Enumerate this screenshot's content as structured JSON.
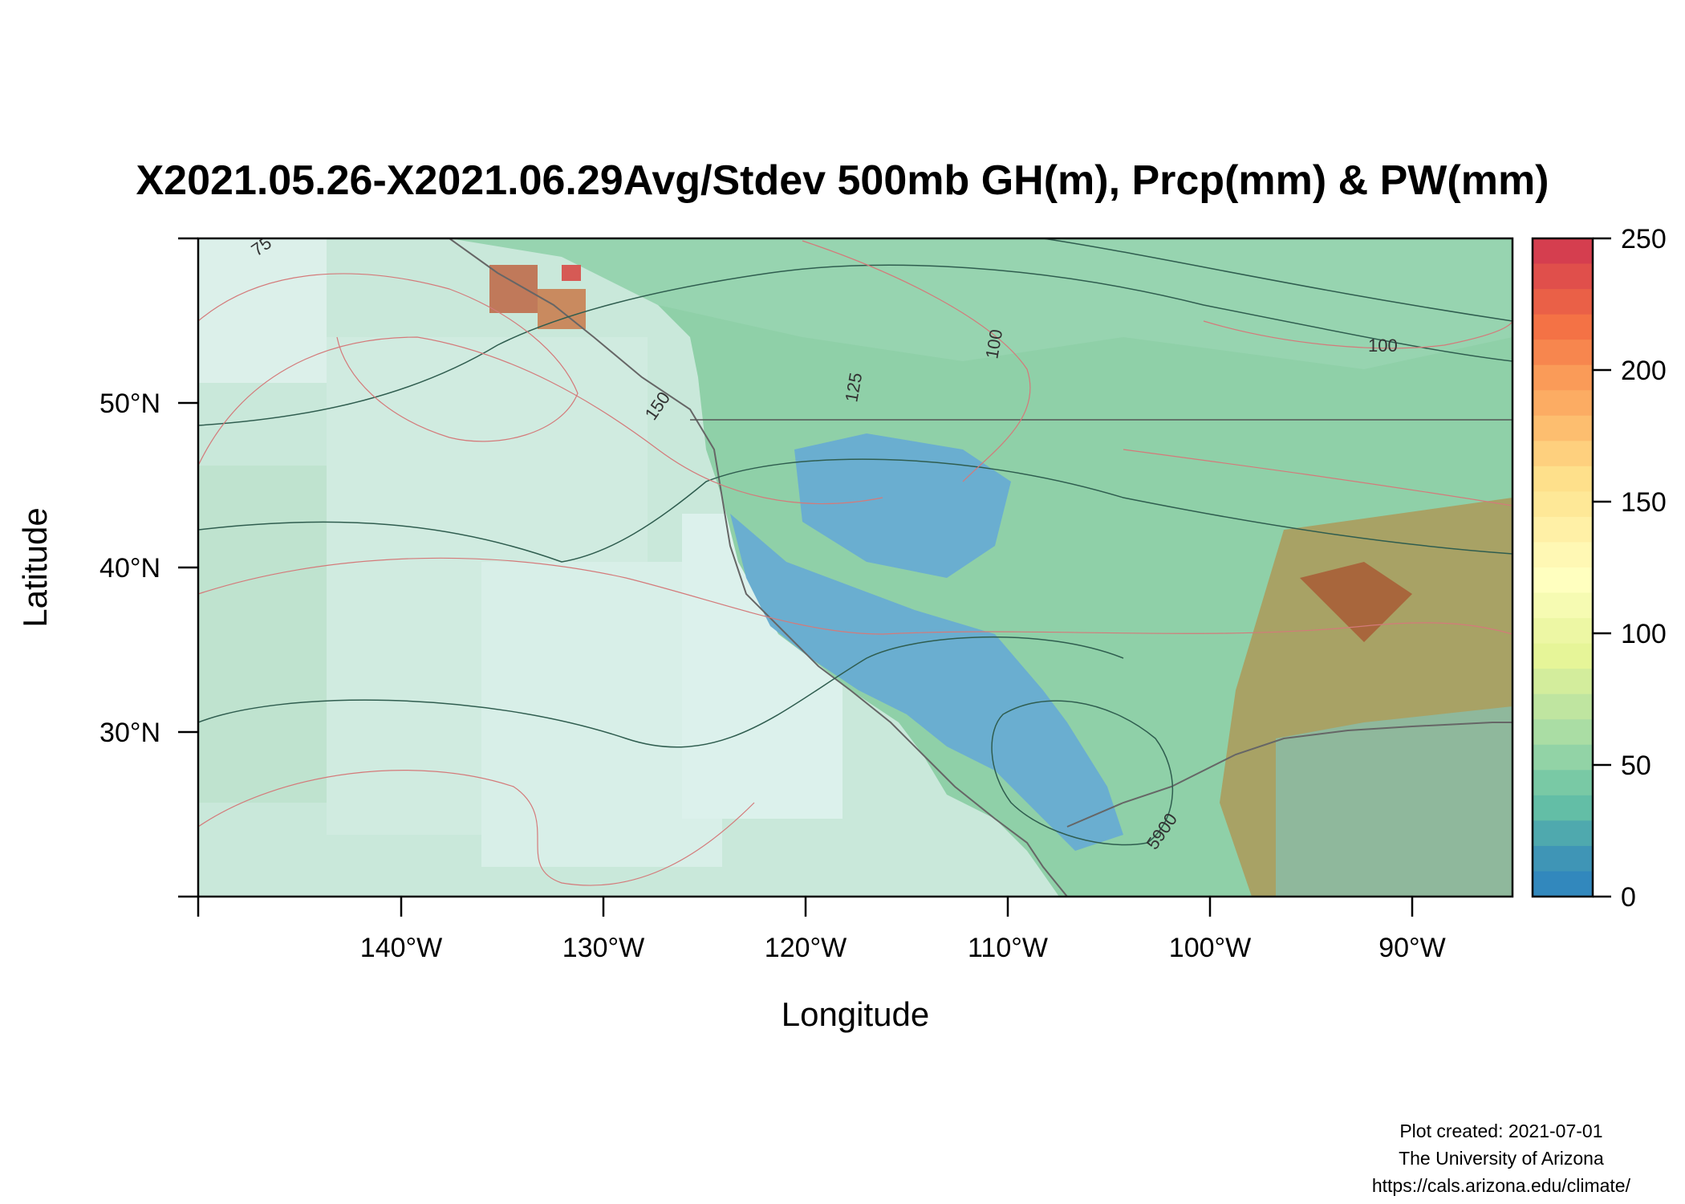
{
  "title": "X2021.05.26-X2021.06.29Avg/Stdev 500mb GH(m), Prcp(mm) & PW(mm)",
  "axes": {
    "xlabel": "Longitude",
    "ylabel": "Latitude",
    "x_ticks": [
      "140°W",
      "130°W",
      "120°W",
      "110°W",
      "100°W",
      "90°W"
    ],
    "y_ticks": [
      "50°N",
      "40°N",
      "30°N"
    ]
  },
  "colorbar": {
    "labels": [
      "250",
      "200",
      "150",
      "100",
      "50",
      "0"
    ],
    "colors": [
      "#d53e4f",
      "#e04f4b",
      "#ea6047",
      "#f47245",
      "#f7864e",
      "#fa9b58",
      "#fcac63",
      "#fdbe6f",
      "#fed07e",
      "#fee08b",
      "#fee897",
      "#fff0a6",
      "#fff8b4",
      "#ffffbf",
      "#f6fbb2",
      "#edf7a4",
      "#e6f598",
      "#d3ed9c",
      "#bfe5a0",
      "#aadda4",
      "#92d3a6",
      "#79c9a5",
      "#63bea6",
      "#4fa9ae",
      "#3f95b6",
      "#3288bd"
    ]
  },
  "contours": {
    "labels": [
      "75",
      "100",
      "125",
      "150",
      "100",
      "5900"
    ]
  },
  "footer": {
    "line1": "Plot created: 2021-07-01",
    "line2": "The University of Arizona",
    "line3": "https://cals.arizona.edu/climate/"
  },
  "map_data": {
    "extent": {
      "lon": [
        -150,
        -85
      ],
      "lat": [
        20,
        60
      ]
    },
    "colorbar_range": [
      0,
      250
    ]
  }
}
